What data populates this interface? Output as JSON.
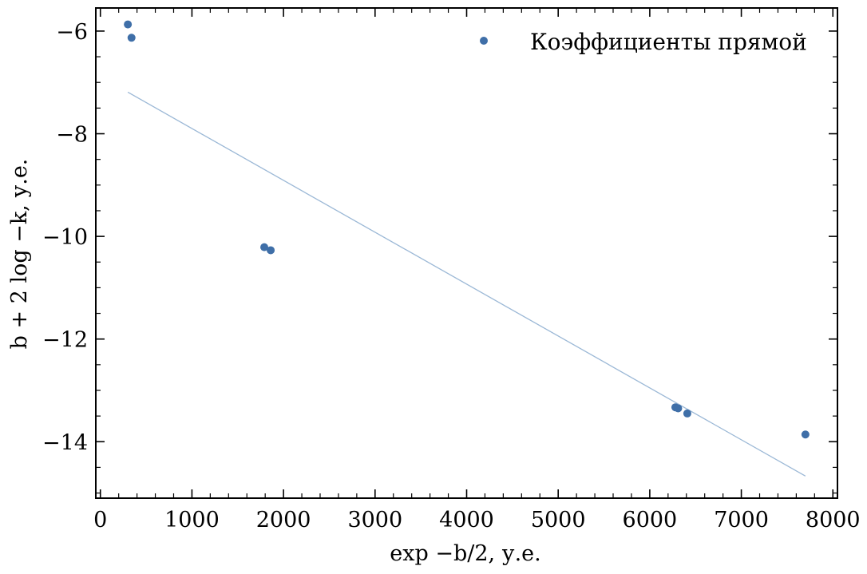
{
  "chart_data": {
    "type": "scatter",
    "xlabel": "exp −b/2, у.е.",
    "ylabel": "b + 2 log −k, у.е.",
    "xlim": [
      -50,
      8050
    ],
    "ylim": [
      -15.1,
      -5.55
    ],
    "x_ticks": [
      0,
      1000,
      2000,
      3000,
      4000,
      5000,
      6000,
      7000,
      8000
    ],
    "x_tick_labels": [
      "0",
      "1000",
      "2000",
      "3000",
      "4000",
      "5000",
      "6000",
      "7000",
      "8000"
    ],
    "y_ticks": [
      -14,
      -12,
      -10,
      -8,
      -6
    ],
    "y_tick_labels": [
      "−14",
      "−12",
      "−10",
      "−8",
      "−6"
    ],
    "grid": false,
    "legend_position": "top-right",
    "series": [
      {
        "name": "Коэффициенты прямой",
        "type": "scatter",
        "color": "#3f6fa8",
        "x": [
          300,
          340,
          1790,
          1860,
          6280,
          6310,
          6410,
          7700
        ],
        "y": [
          -5.87,
          -6.13,
          -10.21,
          -10.27,
          -13.33,
          -13.35,
          -13.45,
          -13.86
        ]
      },
      {
        "type": "line",
        "color": "#9bb8d6",
        "x": [
          300,
          7700
        ],
        "y": [
          -7.19,
          -14.67
        ]
      }
    ]
  }
}
